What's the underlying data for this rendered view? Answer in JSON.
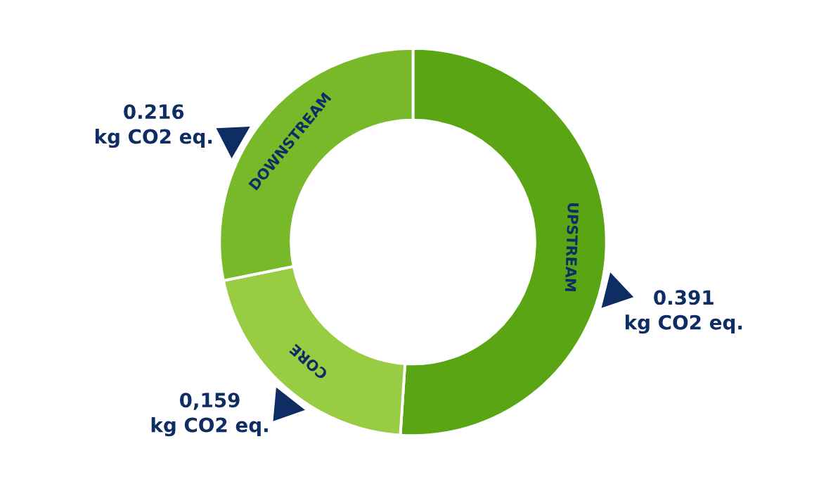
{
  "chart_data": {
    "type": "donut",
    "categories": [
      "UPSTREAM",
      "CORE",
      "DOWNSTREAM"
    ],
    "values": [
      0.391,
      0.159,
      0.216
    ],
    "colors": [
      "#5aa514",
      "#98cc42",
      "#78b92a"
    ],
    "value_labels": [
      "0.391\nkg CO2 eq.",
      "0,159\nkg CO2 eq.",
      "0.216\nkg CO2 eq."
    ],
    "legend": false
  }
}
